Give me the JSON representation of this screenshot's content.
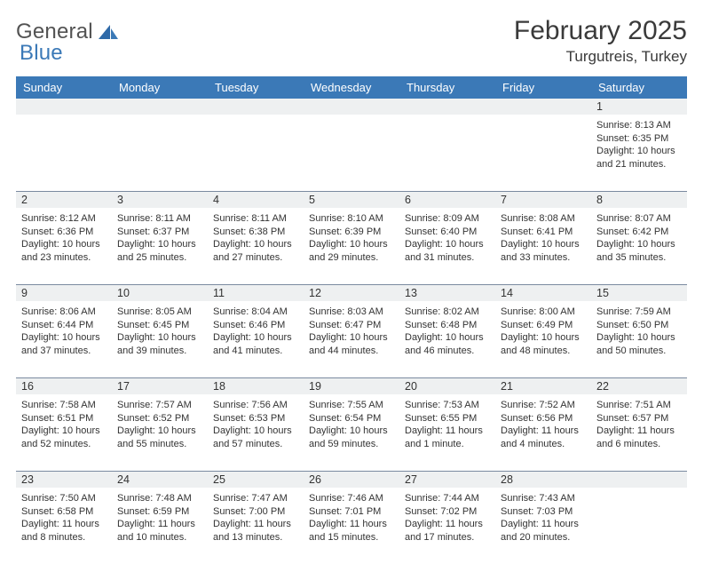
{
  "logo": {
    "word1": "General",
    "word2": "Blue",
    "color_gray": "#535353",
    "color_blue": "#3b79b7"
  },
  "title": "February 2025",
  "location": "Turgutreis, Turkey",
  "header_bg": "#3b79b7",
  "stripe_bg": "#eef0f1",
  "border_color": "#7a8aa0",
  "day_headers": [
    "Sunday",
    "Monday",
    "Tuesday",
    "Wednesday",
    "Thursday",
    "Friday",
    "Saturday"
  ],
  "weeks": [
    [
      null,
      null,
      null,
      null,
      null,
      null,
      {
        "n": "1",
        "sunrise": "Sunrise: 8:13 AM",
        "sunset": "Sunset: 6:35 PM",
        "day1": "Daylight: 10 hours",
        "day2": "and 21 minutes."
      }
    ],
    [
      {
        "n": "2",
        "sunrise": "Sunrise: 8:12 AM",
        "sunset": "Sunset: 6:36 PM",
        "day1": "Daylight: 10 hours",
        "day2": "and 23 minutes."
      },
      {
        "n": "3",
        "sunrise": "Sunrise: 8:11 AM",
        "sunset": "Sunset: 6:37 PM",
        "day1": "Daylight: 10 hours",
        "day2": "and 25 minutes."
      },
      {
        "n": "4",
        "sunrise": "Sunrise: 8:11 AM",
        "sunset": "Sunset: 6:38 PM",
        "day1": "Daylight: 10 hours",
        "day2": "and 27 minutes."
      },
      {
        "n": "5",
        "sunrise": "Sunrise: 8:10 AM",
        "sunset": "Sunset: 6:39 PM",
        "day1": "Daylight: 10 hours",
        "day2": "and 29 minutes."
      },
      {
        "n": "6",
        "sunrise": "Sunrise: 8:09 AM",
        "sunset": "Sunset: 6:40 PM",
        "day1": "Daylight: 10 hours",
        "day2": "and 31 minutes."
      },
      {
        "n": "7",
        "sunrise": "Sunrise: 8:08 AM",
        "sunset": "Sunset: 6:41 PM",
        "day1": "Daylight: 10 hours",
        "day2": "and 33 minutes."
      },
      {
        "n": "8",
        "sunrise": "Sunrise: 8:07 AM",
        "sunset": "Sunset: 6:42 PM",
        "day1": "Daylight: 10 hours",
        "day2": "and 35 minutes."
      }
    ],
    [
      {
        "n": "9",
        "sunrise": "Sunrise: 8:06 AM",
        "sunset": "Sunset: 6:44 PM",
        "day1": "Daylight: 10 hours",
        "day2": "and 37 minutes."
      },
      {
        "n": "10",
        "sunrise": "Sunrise: 8:05 AM",
        "sunset": "Sunset: 6:45 PM",
        "day1": "Daylight: 10 hours",
        "day2": "and 39 minutes."
      },
      {
        "n": "11",
        "sunrise": "Sunrise: 8:04 AM",
        "sunset": "Sunset: 6:46 PM",
        "day1": "Daylight: 10 hours",
        "day2": "and 41 minutes."
      },
      {
        "n": "12",
        "sunrise": "Sunrise: 8:03 AM",
        "sunset": "Sunset: 6:47 PM",
        "day1": "Daylight: 10 hours",
        "day2": "and 44 minutes."
      },
      {
        "n": "13",
        "sunrise": "Sunrise: 8:02 AM",
        "sunset": "Sunset: 6:48 PM",
        "day1": "Daylight: 10 hours",
        "day2": "and 46 minutes."
      },
      {
        "n": "14",
        "sunrise": "Sunrise: 8:00 AM",
        "sunset": "Sunset: 6:49 PM",
        "day1": "Daylight: 10 hours",
        "day2": "and 48 minutes."
      },
      {
        "n": "15",
        "sunrise": "Sunrise: 7:59 AM",
        "sunset": "Sunset: 6:50 PM",
        "day1": "Daylight: 10 hours",
        "day2": "and 50 minutes."
      }
    ],
    [
      {
        "n": "16",
        "sunrise": "Sunrise: 7:58 AM",
        "sunset": "Sunset: 6:51 PM",
        "day1": "Daylight: 10 hours",
        "day2": "and 52 minutes."
      },
      {
        "n": "17",
        "sunrise": "Sunrise: 7:57 AM",
        "sunset": "Sunset: 6:52 PM",
        "day1": "Daylight: 10 hours",
        "day2": "and 55 minutes."
      },
      {
        "n": "18",
        "sunrise": "Sunrise: 7:56 AM",
        "sunset": "Sunset: 6:53 PM",
        "day1": "Daylight: 10 hours",
        "day2": "and 57 minutes."
      },
      {
        "n": "19",
        "sunrise": "Sunrise: 7:55 AM",
        "sunset": "Sunset: 6:54 PM",
        "day1": "Daylight: 10 hours",
        "day2": "and 59 minutes."
      },
      {
        "n": "20",
        "sunrise": "Sunrise: 7:53 AM",
        "sunset": "Sunset: 6:55 PM",
        "day1": "Daylight: 11 hours",
        "day2": "and 1 minute."
      },
      {
        "n": "21",
        "sunrise": "Sunrise: 7:52 AM",
        "sunset": "Sunset: 6:56 PM",
        "day1": "Daylight: 11 hours",
        "day2": "and 4 minutes."
      },
      {
        "n": "22",
        "sunrise": "Sunrise: 7:51 AM",
        "sunset": "Sunset: 6:57 PM",
        "day1": "Daylight: 11 hours",
        "day2": "and 6 minutes."
      }
    ],
    [
      {
        "n": "23",
        "sunrise": "Sunrise: 7:50 AM",
        "sunset": "Sunset: 6:58 PM",
        "day1": "Daylight: 11 hours",
        "day2": "and 8 minutes."
      },
      {
        "n": "24",
        "sunrise": "Sunrise: 7:48 AM",
        "sunset": "Sunset: 6:59 PM",
        "day1": "Daylight: 11 hours",
        "day2": "and 10 minutes."
      },
      {
        "n": "25",
        "sunrise": "Sunrise: 7:47 AM",
        "sunset": "Sunset: 7:00 PM",
        "day1": "Daylight: 11 hours",
        "day2": "and 13 minutes."
      },
      {
        "n": "26",
        "sunrise": "Sunrise: 7:46 AM",
        "sunset": "Sunset: 7:01 PM",
        "day1": "Daylight: 11 hours",
        "day2": "and 15 minutes."
      },
      {
        "n": "27",
        "sunrise": "Sunrise: 7:44 AM",
        "sunset": "Sunset: 7:02 PM",
        "day1": "Daylight: 11 hours",
        "day2": "and 17 minutes."
      },
      {
        "n": "28",
        "sunrise": "Sunrise: 7:43 AM",
        "sunset": "Sunset: 7:03 PM",
        "day1": "Daylight: 11 hours",
        "day2": "and 20 minutes."
      },
      null
    ]
  ]
}
